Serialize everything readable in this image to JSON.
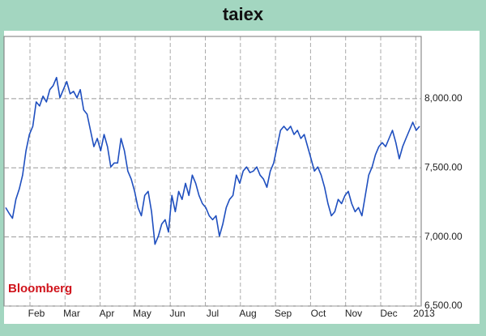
{
  "chart_data": {
    "type": "line",
    "title": "taiex",
    "source": "Bloomberg",
    "x_labels": [
      "Feb",
      "Mar",
      "Apr",
      "May",
      "Jun",
      "Jul",
      "Aug",
      "Sep",
      "Oct",
      "Nov",
      "Dec",
      "2013"
    ],
    "series": [
      {
        "name": "taiex",
        "color": "#1f4fbf",
        "values": [
          7212,
          7171,
          7135,
          7271,
          7347,
          7447,
          7623,
          7741,
          7800,
          7976,
          7947,
          8018,
          7976,
          8065,
          8094,
          8153,
          8006,
          8065,
          8124,
          8035,
          8053,
          8006,
          8065,
          7918,
          7888,
          7771,
          7653,
          7712,
          7623,
          7741,
          7653,
          7506,
          7535,
          7535,
          7712,
          7623,
          7476,
          7418,
          7329,
          7212,
          7153,
          7300,
          7329,
          7182,
          6947,
          7006,
          7094,
          7124,
          7035,
          7300,
          7182,
          7329,
          7271,
          7388,
          7300,
          7447,
          7388,
          7300,
          7241,
          7212,
          7153,
          7124,
          7153,
          7006,
          7094,
          7212,
          7271,
          7300,
          7447,
          7388,
          7476,
          7506,
          7465,
          7476,
          7506,
          7447,
          7418,
          7359,
          7476,
          7535,
          7653,
          7771,
          7800,
          7771,
          7800,
          7741,
          7771,
          7712,
          7741,
          7653,
          7565,
          7476,
          7506,
          7447,
          7359,
          7241,
          7153,
          7182,
          7271,
          7241,
          7300,
          7329,
          7241,
          7182,
          7212,
          7153,
          7300,
          7447,
          7506,
          7594,
          7653,
          7682,
          7653,
          7712,
          7771,
          7682,
          7565,
          7653,
          7712,
          7771,
          7829,
          7771,
          7800
        ]
      }
    ],
    "ylim": [
      6500,
      8450
    ],
    "yticks": [
      {
        "value": 6500,
        "label": "6,500.00"
      },
      {
        "value": 7000,
        "label": "7,000.00"
      },
      {
        "value": 7500,
        "label": "7,500.00"
      },
      {
        "value": 8000,
        "label": "8,000.00"
      }
    ],
    "grid": true
  }
}
